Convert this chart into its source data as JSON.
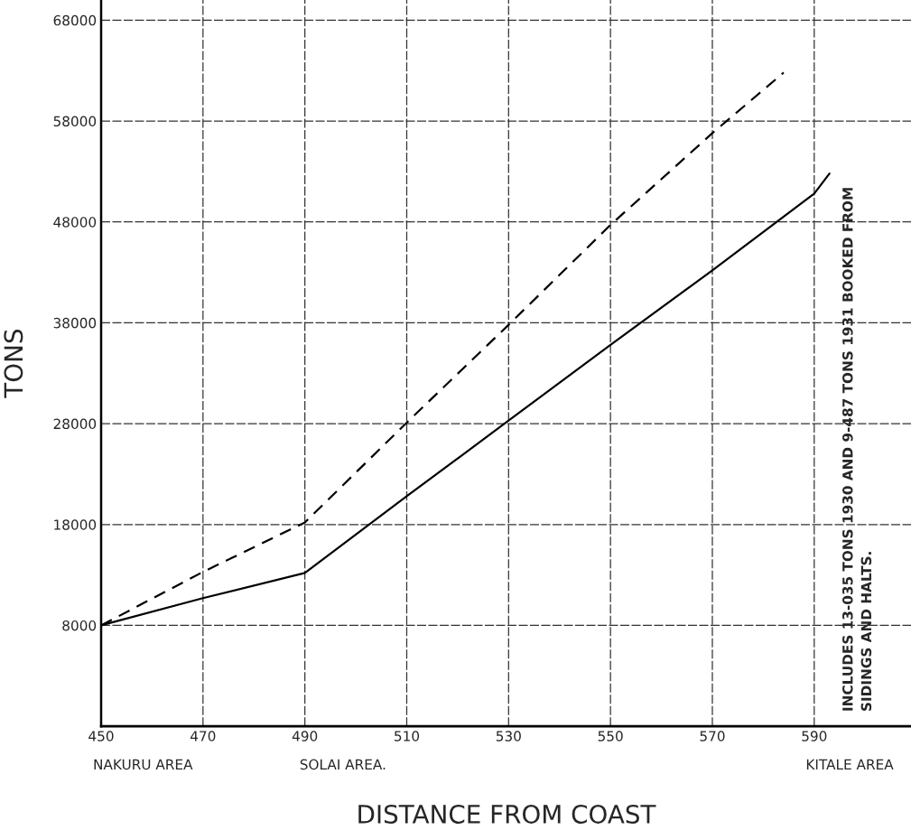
{
  "chart_data": {
    "type": "line",
    "xlabel": "DISTANCE FROM COAST",
    "ylabel": "TONS",
    "xlim": [
      450,
      609
    ],
    "xticks": [
      450,
      470,
      490,
      510,
      530,
      550,
      570,
      590
    ],
    "ylim": [
      -2000,
      70000
    ],
    "yticks": [
      8000,
      18000,
      28000,
      38000,
      48000,
      58000,
      68000
    ],
    "grid": true,
    "legend": false,
    "marker": "none",
    "series": [
      {
        "color": "#000000",
        "line_style": "solid",
        "x": [
          450,
          470,
          490,
          510,
          530,
          550,
          570,
          590,
          593
        ],
        "values": [
          8000,
          10700,
          13200,
          20800,
          28300,
          35800,
          43200,
          50800,
          52800
        ]
      },
      {
        "color": "#000000",
        "line_style": "dashed",
        "x": [
          450,
          470,
          490,
          510,
          530,
          550,
          570,
          584
        ],
        "values": [
          8000,
          13300,
          18200,
          28100,
          37800,
          47700,
          56800,
          62800
        ]
      }
    ],
    "annotations": [
      "NAKURU AREA",
      "SOLAI AREA.",
      "KITALE AREA",
      "INCLUDES 13-035 TONS 1930 AND 9-487 TONS 1931 BOOKED FROM\nSIDINGS AND HALTS."
    ]
  }
}
